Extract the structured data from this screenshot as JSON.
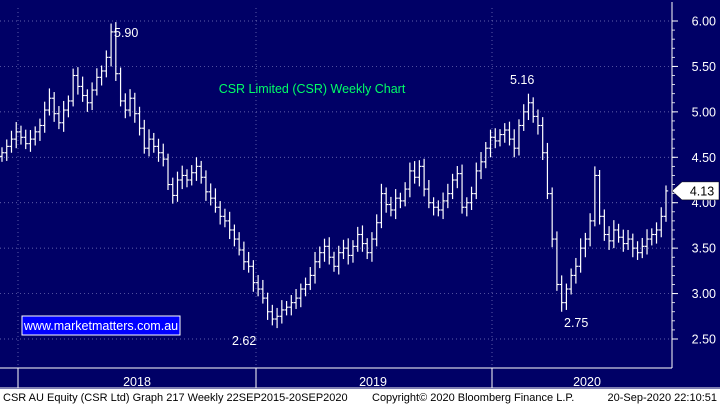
{
  "chart_data": {
    "type": "candlestick",
    "title": "CSR Limited (CSR) Weekly Chart",
    "watermark": "www.marketmatters.com.au",
    "ylim": [
      2.3,
      6.1
    ],
    "yticks": [
      "6.00",
      "5.50",
      "5.00",
      "4.50",
      "4.00",
      "3.50",
      "3.00",
      "2.50"
    ],
    "last_price": "4.13",
    "year_labels": [
      "2018",
      "2019",
      "2020"
    ],
    "annotations": [
      "5.90",
      "5.16",
      "2.62",
      "2.75"
    ],
    "weekly_close": [
      4.55,
      4.62,
      4.7,
      4.78,
      4.72,
      4.65,
      4.7,
      4.78,
      4.85,
      5.02,
      5.15,
      4.98,
      4.88,
      5.02,
      5.12,
      5.4,
      5.28,
      5.18,
      5.1,
      5.24,
      5.38,
      5.45,
      5.6,
      5.88,
      5.42,
      5.12,
      5.02,
      5.15,
      4.98,
      4.82,
      4.6,
      4.7,
      4.62,
      4.55,
      4.48,
      4.2,
      4.08,
      4.25,
      4.3,
      4.25,
      4.33,
      4.4,
      4.28,
      4.12,
      4.05,
      3.95,
      3.85,
      3.8,
      3.7,
      3.6,
      3.48,
      3.35,
      3.3,
      3.12,
      3.05,
      2.95,
      2.8,
      2.72,
      2.75,
      2.82,
      2.85,
      2.9,
      2.95,
      3.05,
      3.1,
      3.2,
      3.35,
      3.45,
      3.52,
      3.4,
      3.3,
      3.45,
      3.5,
      3.42,
      3.52,
      3.65,
      3.55,
      3.45,
      3.6,
      3.78,
      4.1,
      3.98,
      3.92,
      4.05,
      4.02,
      4.15,
      4.35,
      4.28,
      4.4,
      4.15,
      4.0,
      3.95,
      3.92,
      4.02,
      4.1,
      4.25,
      4.32,
      3.95,
      4.0,
      4.1,
      4.35,
      4.45,
      4.6,
      4.72,
      4.68,
      4.75,
      4.8,
      4.7,
      4.6,
      4.85,
      5.0,
      5.1,
      4.95,
      4.85,
      4.55,
      4.1,
      3.6,
      3.1,
      2.9,
      3.05,
      3.2,
      3.3,
      3.5,
      3.6,
      3.8,
      4.3,
      3.85,
      3.65,
      3.58,
      3.7,
      3.62,
      3.55,
      3.6,
      3.5,
      3.45,
      3.52,
      3.6,
      3.65,
      3.7,
      3.85,
      4.13
    ],
    "axis_color": "#ffffff",
    "bar_color": "#ffffff",
    "title_color": "#00ff66",
    "watermark_color": "#ffffff",
    "watermark_bg": "#0000ff",
    "background": "#000066",
    "grid": "dotted"
  },
  "footer": {
    "left": "CSR AU Equity (CSR Ltd) Graph 217  Weekly 22SEP2015-20SEP2020",
    "copyright": "Copyright© 2020 Bloomberg Finance L.P.",
    "date": "20-Sep-2020 22:10:51"
  }
}
